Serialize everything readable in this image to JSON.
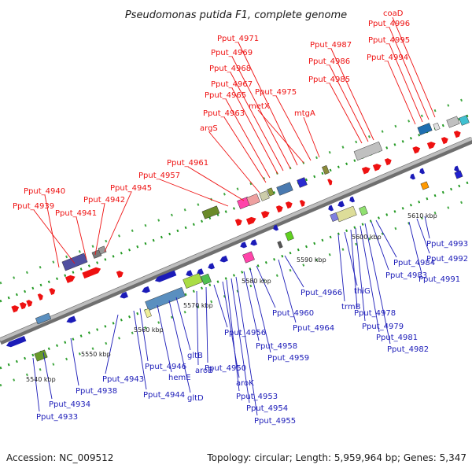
{
  "title": "Pseudomonas putida F1, complete genome",
  "footer": {
    "accession": "Accession: NC_009512",
    "summary": "Topology: circular; Length: 5,959,964 bp; Genes: 5,347"
  },
  "colors": {
    "forward": "#ee1111",
    "reverse": "#1b1bb8",
    "backbone": "#9a9a9a",
    "tick": "#229922"
  },
  "ticks": [
    "5540 kbp",
    "5550 kbp",
    "5560 kbp",
    "5570 kbp",
    "5580 kbp",
    "5590 kbp",
    "5600 kbp",
    "5610 kbp"
  ],
  "top_labels": [
    "Pput_4940",
    "Pput_4939",
    "Pput_4941",
    "Pput_4942",
    "Pput_4945",
    "Pput_4957",
    "Pput_4961",
    "argS",
    "Pput_4963",
    "Pput_4965",
    "Pput_4967",
    "Pput_4968",
    "Pput_4969",
    "Pput_4971",
    "metX",
    "Pput_4975",
    "mtgA",
    "Pput_4985",
    "Pput_4986",
    "Pput_4987",
    "Pput_4994",
    "Pput_4995",
    "Pput_4996",
    "coaD"
  ],
  "bottom_labels": [
    "Pput_4933",
    "Pput_4934",
    "Pput_4938",
    "Pput_4943",
    "Pput_4944",
    "Pput_4946",
    "hemE",
    "gltD",
    "gltB",
    "aroB",
    "Pput_4950",
    "Pput_4956",
    "aroK",
    "Pput_4953",
    "Pput_4954",
    "Pput_4955",
    "Pput_4958",
    "Pput_4959",
    "Pput_4960",
    "Pput_4964",
    "Pput_4966",
    "trmB",
    "thiG",
    "Pput_4978",
    "Pput_4979",
    "Pput_4981",
    "Pput_4982",
    "Pput_4983",
    "Pput_4984",
    "Pput_4991",
    "Pput_4992",
    "Pput_4993"
  ]
}
